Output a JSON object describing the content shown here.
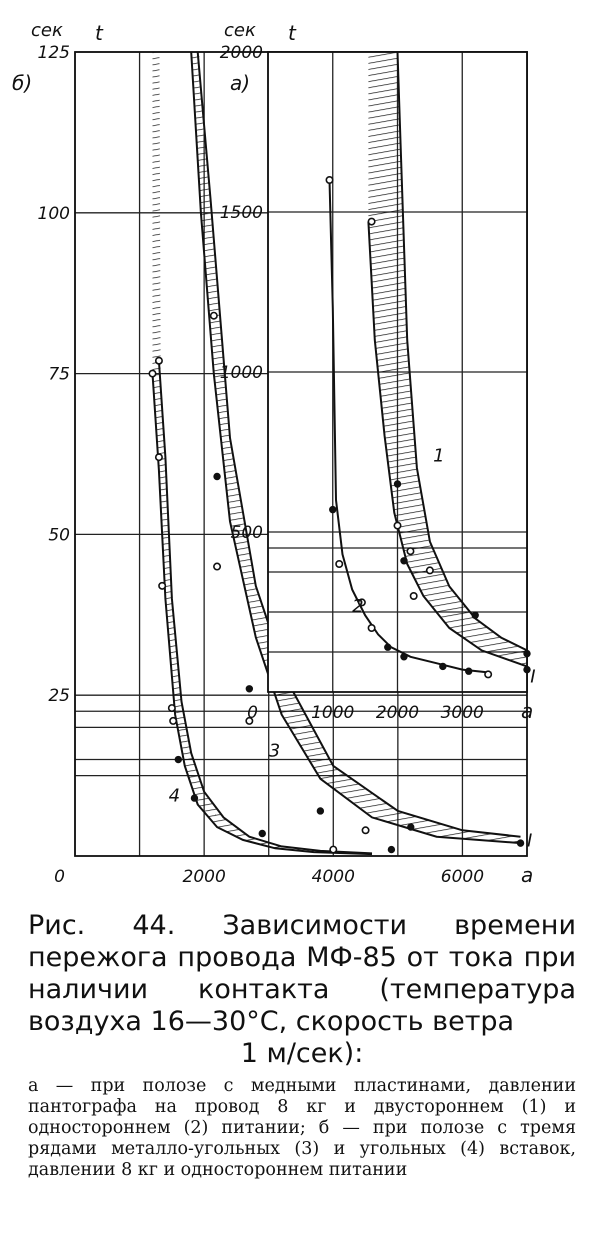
{
  "chart_data": [
    {
      "panel": "б)",
      "type": "line",
      "y_unit": "сек",
      "ylabel": "t",
      "xlabel": "a",
      "xlim": [
        0,
        7000
      ],
      "ylim": [
        0,
        125
      ],
      "xticks": [
        0,
        2000,
        4000,
        6000
      ],
      "yticks": [
        25,
        50,
        75,
        100,
        125
      ],
      "curve_labels": [
        {
          "text": "3",
          "x": 3000,
          "y": 15.5
        },
        {
          "text": "4",
          "x": 1450,
          "y": 8.5
        },
        {
          "text": "I",
          "x": 7000,
          "y": 1.5
        }
      ],
      "series": [
        {
          "name": "3",
          "role": "upper",
          "x": [
            1900,
            2100,
            2400,
            2800,
            3300,
            4000,
            5000,
            6000,
            6900
          ],
          "y": [
            125,
            102,
            65,
            42,
            27,
            14,
            7,
            4,
            3
          ]
        },
        {
          "name": "3",
          "role": "lower",
          "x": [
            1800,
            1950,
            2150,
            2400,
            2800,
            3200,
            3800,
            4600,
            5600,
            6900
          ],
          "y": [
            125,
            100,
            75,
            52,
            34,
            22,
            12,
            6,
            3,
            2
          ]
        },
        {
          "name": "4",
          "role": "upper",
          "x": [
            1300,
            1400,
            1500,
            1650,
            1800,
            2000,
            2300,
            2700,
            3200,
            3800,
            4600
          ],
          "y": [
            77,
            62,
            40,
            24,
            16,
            10,
            6,
            3,
            1.5,
            0.8,
            0.4
          ]
        },
        {
          "name": "4",
          "role": "lower",
          "x": [
            1200,
            1300,
            1400,
            1550,
            1700,
            1900,
            2200,
            2600,
            3100,
            3700,
            4600
          ],
          "y": [
            75,
            60,
            40,
            22,
            14,
            8,
            4.5,
            2.5,
            1.2,
            0.6,
            0.3
          ]
        }
      ],
      "markers": [
        {
          "x": 1200,
          "y": 75,
          "shape": "open"
        },
        {
          "x": 1300,
          "y": 77,
          "shape": "open"
        },
        {
          "x": 1300,
          "y": 62,
          "shape": "open"
        },
        {
          "x": 1350,
          "y": 42,
          "shape": "open"
        },
        {
          "x": 1500,
          "y": 23,
          "shape": "open"
        },
        {
          "x": 1520,
          "y": 21,
          "shape": "open"
        },
        {
          "x": 1600,
          "y": 15,
          "shape": "filled"
        },
        {
          "x": 1850,
          "y": 9,
          "shape": "filled"
        },
        {
          "x": 2900,
          "y": 3.5,
          "shape": "filled"
        },
        {
          "x": 4000,
          "y": 1,
          "shape": "open"
        },
        {
          "x": 2150,
          "y": 84,
          "shape": "open"
        },
        {
          "x": 2200,
          "y": 59,
          "shape": "filled"
        },
        {
          "x": 2200,
          "y": 45,
          "shape": "open"
        },
        {
          "x": 2700,
          "y": 26,
          "shape": "filled"
        },
        {
          "x": 2700,
          "y": 21,
          "shape": "open"
        },
        {
          "x": 3800,
          "y": 7,
          "shape": "filled"
        },
        {
          "x": 4500,
          "y": 4,
          "shape": "open"
        },
        {
          "x": 4900,
          "y": 1,
          "shape": "filled"
        },
        {
          "x": 5200,
          "y": 4.5,
          "shape": "filled"
        },
        {
          "x": 6900,
          "y": 2,
          "shape": "filled"
        }
      ]
    },
    {
      "panel": "а)",
      "type": "line",
      "y_unit": "сек",
      "ylabel": "t",
      "xlabel": "a",
      "xlim": [
        0,
        4000
      ],
      "ylim": [
        0,
        2000
      ],
      "xticks": [
        0,
        1000,
        2000,
        3000
      ],
      "yticks": [
        500,
        1000,
        1500,
        2000
      ],
      "curve_labels": [
        {
          "text": "1",
          "x": 2550,
          "y": 720
        },
        {
          "text": "2",
          "x": 1300,
          "y": 250
        },
        {
          "text": "I",
          "x": 4050,
          "y": 30
        }
      ],
      "series": [
        {
          "name": "1",
          "role": "upper",
          "x": [
            2000,
            2050,
            2150,
            2300,
            2500,
            2800,
            3200,
            3600,
            4000
          ],
          "y": [
            2000,
            1700,
            1100,
            700,
            470,
            330,
            230,
            170,
            130
          ]
        },
        {
          "name": "1",
          "role": "lower",
          "x": [
            1550,
            1650,
            1800,
            1950,
            2150,
            2400,
            2800,
            3300,
            4000
          ],
          "y": [
            1470,
            1100,
            800,
            560,
            400,
            300,
            200,
            130,
            80
          ]
        },
        {
          "name": "2",
          "role": "single",
          "x": [
            950,
            1000,
            1050,
            1150,
            1300,
            1500,
            1700,
            1900,
            2200,
            2600,
            3000,
            3450
          ],
          "y": [
            1600,
            1200,
            600,
            430,
            320,
            240,
            180,
            140,
            110,
            90,
            70,
            60
          ]
        }
      ],
      "markers": [
        {
          "x": 950,
          "y": 1600,
          "shape": "open"
        },
        {
          "x": 1000,
          "y": 570,
          "shape": "filled"
        },
        {
          "x": 1100,
          "y": 400,
          "shape": "open"
        },
        {
          "x": 1450,
          "y": 280,
          "shape": "open"
        },
        {
          "x": 1600,
          "y": 200,
          "shape": "open"
        },
        {
          "x": 1850,
          "y": 140,
          "shape": "filled"
        },
        {
          "x": 2100,
          "y": 110,
          "shape": "filled"
        },
        {
          "x": 2700,
          "y": 80,
          "shape": "filled"
        },
        {
          "x": 3100,
          "y": 65,
          "shape": "filled"
        },
        {
          "x": 3400,
          "y": 55,
          "shape": "open"
        },
        {
          "x": 1600,
          "y": 1470,
          "shape": "open"
        },
        {
          "x": 2000,
          "y": 650,
          "shape": "filled"
        },
        {
          "x": 2000,
          "y": 520,
          "shape": "open"
        },
        {
          "x": 2100,
          "y": 410,
          "shape": "filled"
        },
        {
          "x": 2200,
          "y": 440,
          "shape": "open"
        },
        {
          "x": 2250,
          "y": 300,
          "shape": "open"
        },
        {
          "x": 2500,
          "y": 380,
          "shape": "open"
        },
        {
          "x": 3200,
          "y": 240,
          "shape": "filled"
        },
        {
          "x": 4000,
          "y": 120,
          "shape": "filled"
        },
        {
          "x": 4000,
          "y": 70,
          "shape": "filled"
        }
      ]
    }
  ],
  "caption": {
    "main_lines": "Рис. 44. Зависимости времени пережога провода МФ-85 от тока при наличии контакта (температура воздуха 16—30°С, скорость ветра",
    "main_last": "1 м/сек):",
    "note": "а — при полозе с медными пластинами, давлении пантографа на провод 8 кг и двустороннем (1) и одностороннем (2) питании; б — при полозе с тремя рядами металло-угольных (3) и угольных (4) вставок, давлении 8 кг и одностороннем питании"
  }
}
